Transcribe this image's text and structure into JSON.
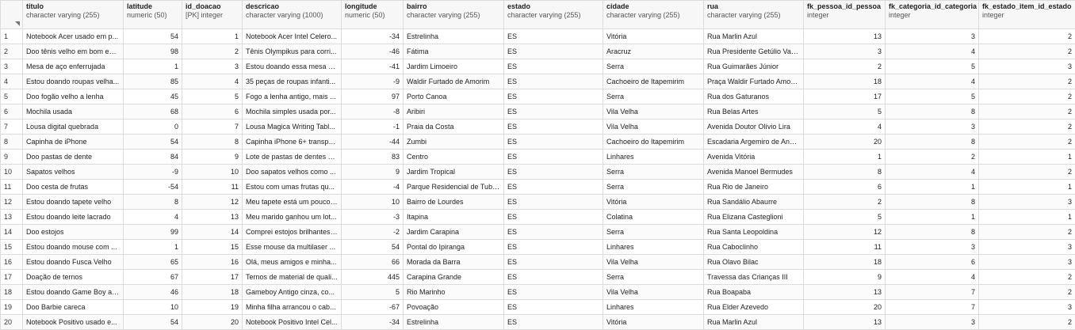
{
  "columns": [
    {
      "name": "titulo",
      "type": "character varying (255)",
      "numeric": false
    },
    {
      "name": "latitude",
      "type": "numeric (50)",
      "numeric": true
    },
    {
      "name": "id_doacao",
      "type": "[PK] integer",
      "numeric": true
    },
    {
      "name": "descricao",
      "type": "character varying (1000)",
      "numeric": false
    },
    {
      "name": "longitude",
      "type": "numeric (50)",
      "numeric": true
    },
    {
      "name": "bairro",
      "type": "character varying (255)",
      "numeric": false
    },
    {
      "name": "estado",
      "type": "character varying (255)",
      "numeric": false
    },
    {
      "name": "cidade",
      "type": "character varying (255)",
      "numeric": false
    },
    {
      "name": "rua",
      "type": "character varying (255)",
      "numeric": false
    },
    {
      "name": "fk_pessoa_id_pessoa",
      "type": "integer",
      "numeric": true
    },
    {
      "name": "fk_categoria_id_categoria",
      "type": "integer",
      "numeric": true
    },
    {
      "name": "fk_estado_item_id_estado",
      "type": "integer",
      "numeric": true
    }
  ],
  "rows": [
    {
      "n": "1",
      "cells": [
        "Notebook Acer usado em p...",
        "54",
        "1",
        "Notebook Acer Intel Celero...",
        "-34",
        "Estrelinha",
        "ES",
        "Vitória",
        "Rua Marlin Azul",
        "13",
        "3",
        "2"
      ]
    },
    {
      "n": "2",
      "cells": [
        "Doo tênis velho em bom est...",
        "98",
        "2",
        "Tênis Olympikus para corri...",
        "-46",
        "Fátima",
        "ES",
        "Aracruz",
        "Rua Presidente Getúlio Varg...",
        "3",
        "4",
        "2"
      ]
    },
    {
      "n": "3",
      "cells": [
        "Mesa de aço enferrujada",
        "1",
        "3",
        "Estou doando essa mesa e...",
        "-41",
        "Jardim Limoeiro",
        "ES",
        "Serra",
        "Rua Guimarães Júnior",
        "2",
        "5",
        "3"
      ]
    },
    {
      "n": "4",
      "cells": [
        "Estou doando roupas velha...",
        "85",
        "4",
        "35 peças de roupas infanti...",
        "-9",
        "Waldir Furtado de Amorim",
        "ES",
        "Cachoeiro de Itapemirim",
        "Praça Waldir Furtado Amori...",
        "18",
        "4",
        "2"
      ]
    },
    {
      "n": "5",
      "cells": [
        "Doo fogão velho a lenha",
        "45",
        "5",
        "Fogo a lenha antigo, mais ...",
        "97",
        "Porto Canoa",
        "ES",
        "Serra",
        "Rua dos Gaturanos",
        "17",
        "5",
        "2"
      ]
    },
    {
      "n": "6",
      "cells": [
        "Mochila usada",
        "68",
        "6",
        "Mochila simples usada por...",
        "-8",
        "Aribiri",
        "ES",
        "Vila Velha",
        "Rua Belas Artes",
        "5",
        "8",
        "2"
      ]
    },
    {
      "n": "7",
      "cells": [
        "Lousa digital quebrada",
        "0",
        "7",
        "Lousa Magica Writing Tabl...",
        "-1",
        "Praia da Costa",
        "ES",
        "Vila Velha",
        "Avenida Doutor Olívio Lira",
        "4",
        "3",
        "2"
      ]
    },
    {
      "n": "8",
      "cells": [
        "Capinha de iPhone",
        "54",
        "8",
        "Capinha iPhone 6+ transpa...",
        "-44",
        "Zumbi",
        "ES",
        "Cachoeiro do Itapemirim",
        "Escadaria Argemiro de Andr...",
        "20",
        "8",
        "2"
      ]
    },
    {
      "n": "9",
      "cells": [
        "Doo pastas de dente",
        "84",
        "9",
        "Lote de pastas de dentes C...",
        "83",
        "Centro",
        "ES",
        "Linhares",
        "Avenida Vitória",
        "1",
        "2",
        "1"
      ]
    },
    {
      "n": "10",
      "cells": [
        "Sapatos velhos",
        "-9",
        "10",
        "Doo sapatos velhos como ...",
        "9",
        "Jardim Tropical",
        "ES",
        "Serra",
        "Avenida Manoel Bermudes",
        "8",
        "4",
        "2"
      ]
    },
    {
      "n": "11",
      "cells": [
        "Doo cesta de frutas",
        "-54",
        "11",
        "Estou com umas frutas qu...",
        "-4",
        "Parque Residencial de Tuba...",
        "ES",
        "Serra",
        "Rua Rio de Janeiro",
        "6",
        "1",
        "1"
      ]
    },
    {
      "n": "12",
      "cells": [
        "Estou doando tapete velho",
        "8",
        "12",
        "Meu tapete está um pouco ...",
        "10",
        "Bairro de Lourdes",
        "ES",
        "Vitória",
        "Rua Sandálio Abaurre",
        "2",
        "8",
        "3"
      ]
    },
    {
      "n": "13",
      "cells": [
        "Estou doando leite lacrado",
        "4",
        "13",
        "Meu marido ganhou um lot...",
        "-3",
        "Itapina",
        "ES",
        "Colatina",
        "Rua Elizana Casteglioni",
        "5",
        "1",
        "1"
      ]
    },
    {
      "n": "14",
      "cells": [
        "Doo estojos",
        "99",
        "14",
        "Comprei estojos brilhantes ...",
        "-2",
        "Jardim Carapina",
        "ES",
        "Serra",
        "Rua Santa Leopoldina",
        "12",
        "8",
        "2"
      ]
    },
    {
      "n": "15",
      "cells": [
        "Estou doando mouse com ...",
        "1",
        "15",
        "Esse mouse da multilaser ...",
        "54",
        "Pontal do Ipiranga",
        "ES",
        "Linhares",
        "Rua Caboclinho",
        "11",
        "3",
        "3"
      ]
    },
    {
      "n": "16",
      "cells": [
        "Estou doando Fusca Velho",
        "65",
        "16",
        "Olá, meus amigos e minha...",
        "66",
        "Morada da Barra",
        "ES",
        "Vila Velha",
        "Rua Olavo Bilac",
        "18",
        "6",
        "3"
      ]
    },
    {
      "n": "17",
      "cells": [
        "Doação de ternos",
        "67",
        "17",
        "Ternos de material de quali...",
        "445",
        "Carapina Grande",
        "ES",
        "Serra",
        "Travessa das Crianças III",
        "9",
        "4",
        "2"
      ]
    },
    {
      "n": "18",
      "cells": [
        "Estou doando Game Boy an...",
        "46",
        "18",
        "Gameboy Antigo cinza, co...",
        "5",
        "Rio Marinho",
        "ES",
        "Vila Velha",
        "Rua Boapaba",
        "13",
        "7",
        "2"
      ]
    },
    {
      "n": "19",
      "cells": [
        "Doo Barbie careca",
        "10",
        "19",
        "Minha filha arrancou o cab...",
        "-67",
        "Povoação",
        "ES",
        "Linhares",
        "Rua Elder Azevedo",
        "20",
        "7",
        "3"
      ]
    },
    {
      "n": "20",
      "cells": [
        "Notebook Positivo usado e...",
        "54",
        "20",
        "Notebook Positivo Intel Cel...",
        "-34",
        "Estrelinha",
        "ES",
        "Vitória",
        "Rua Marlin Azul",
        "13",
        "3",
        "2"
      ]
    }
  ]
}
